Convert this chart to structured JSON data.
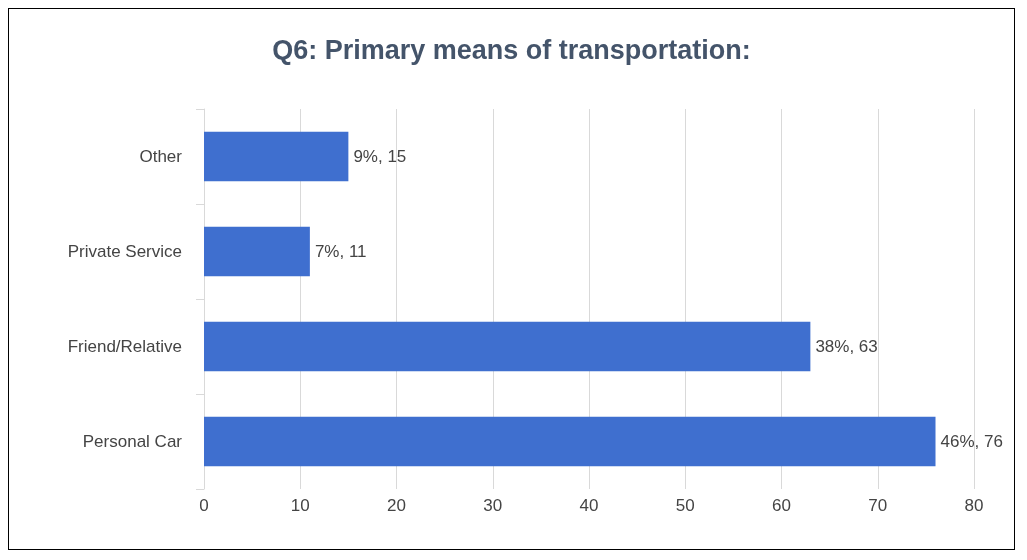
{
  "chart_data": {
    "type": "bar",
    "orientation": "horizontal",
    "title": "Q6: Primary means of transportation:",
    "categories": [
      "Other",
      "Private Service",
      "Friend/Relative",
      "Personal Car"
    ],
    "values": [
      15,
      11,
      63,
      76
    ],
    "value_labels": [
      "9%, 15",
      "7%, 11",
      "38%, 63",
      "46%, 76"
    ],
    "color": "#3f6fcf",
    "xlim": [
      0,
      80
    ],
    "xticks": [
      0,
      10,
      20,
      30,
      40,
      50,
      60,
      70,
      80
    ],
    "grid": "x"
  }
}
